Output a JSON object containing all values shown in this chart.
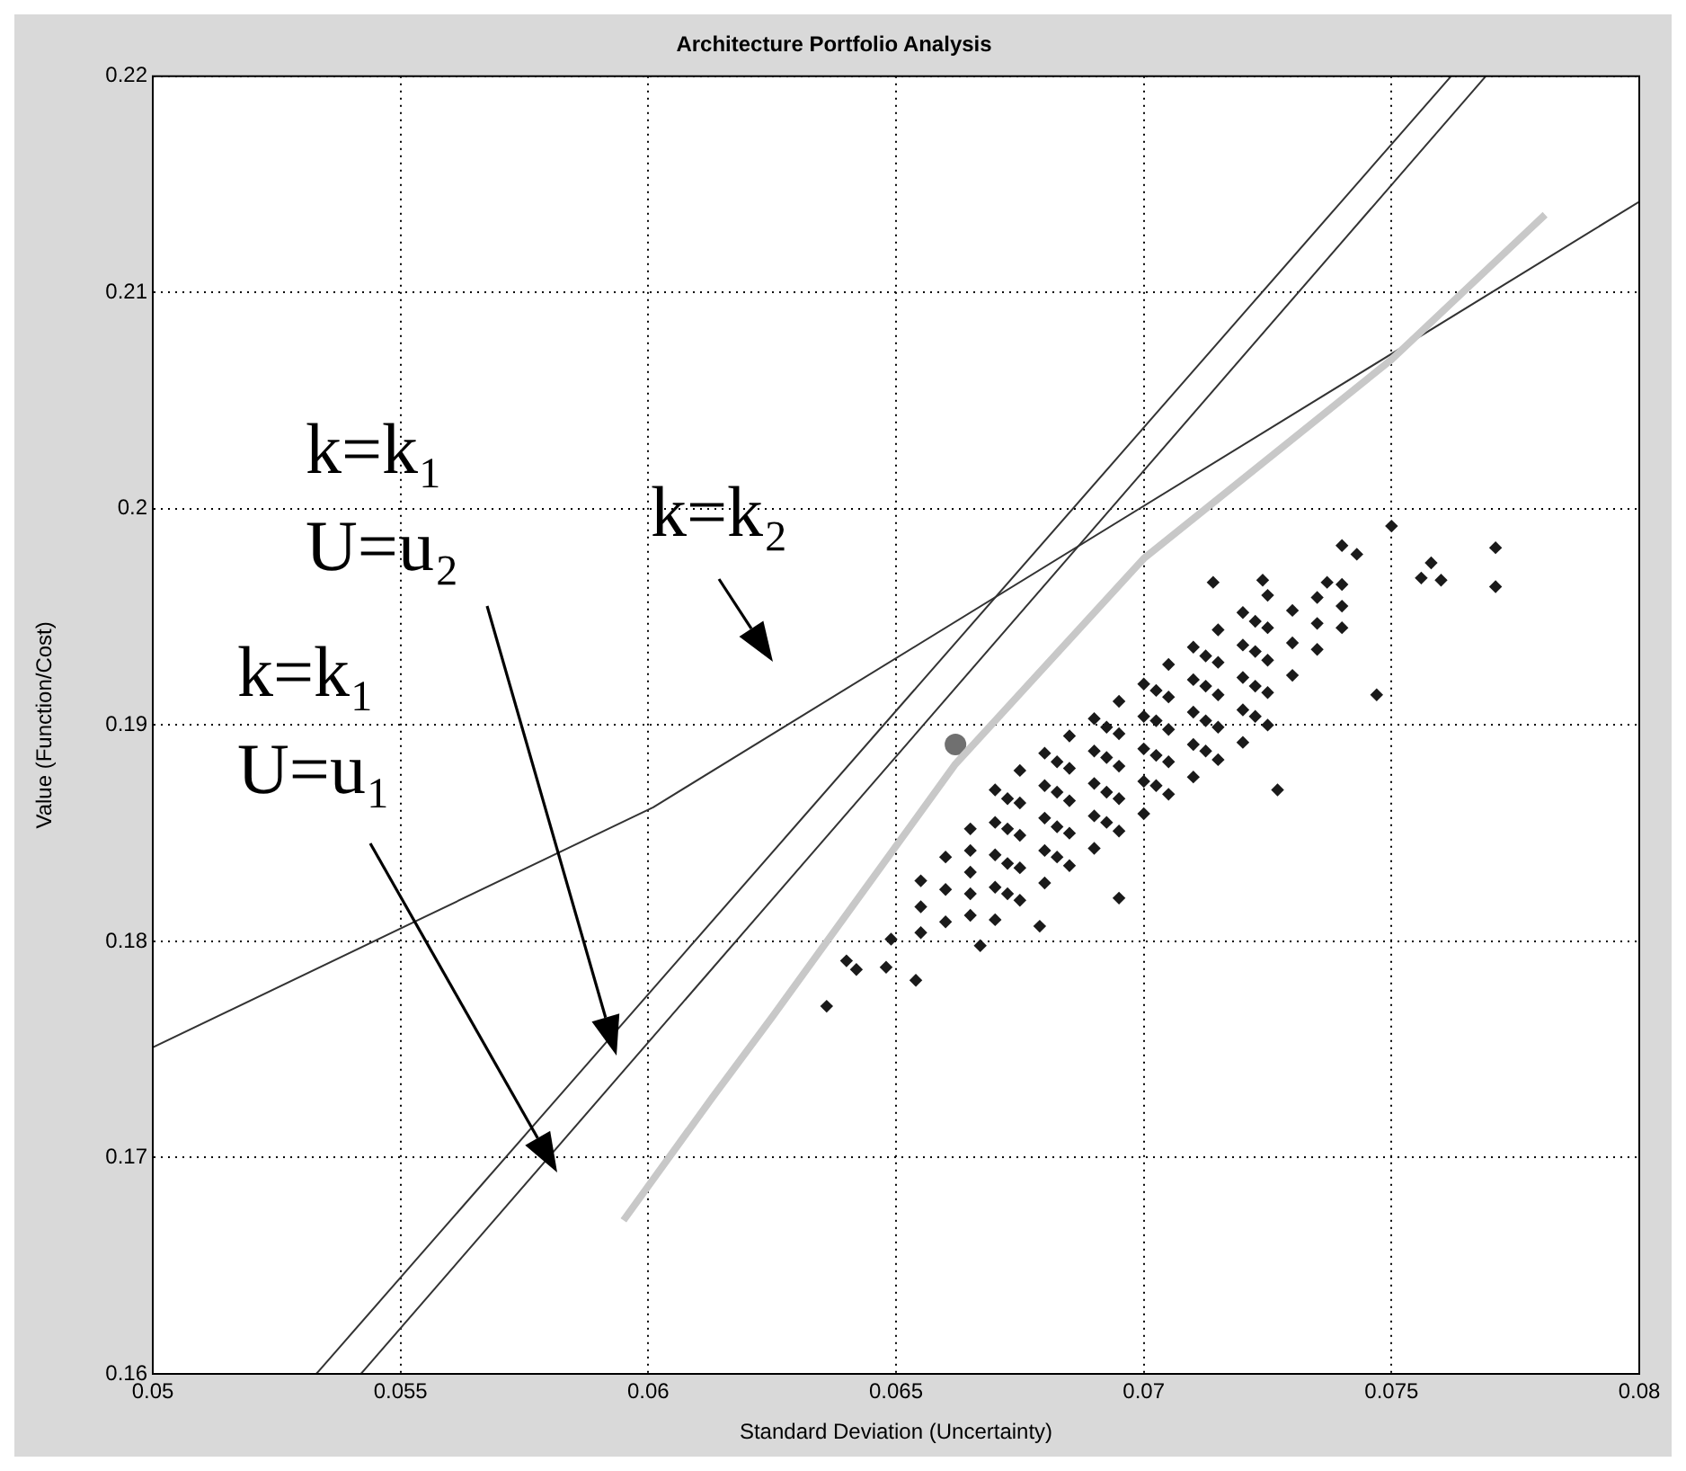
{
  "chart_data": {
    "type": "scatter",
    "title": "Architecture Portfolio Analysis",
    "xlabel": "Standard Deviation (Uncertainty)",
    "ylabel": "Value (Function/Cost)",
    "xlim": [
      0.05,
      0.08
    ],
    "xticks": [
      0.05,
      0.055,
      0.06,
      0.065,
      0.07,
      0.075,
      0.08
    ],
    "ylim": [
      0.16,
      0.22
    ],
    "yticks": [
      0.16,
      0.17,
      0.18,
      0.19,
      0.2,
      0.21,
      0.22
    ],
    "grid": true,
    "legend": false,
    "series": [
      {
        "type": "line",
        "marker": "none",
        "color": "#c8c8c8",
        "x": [
          0.0595,
          0.0613,
          0.0625,
          0.0662,
          0.07,
          0.075,
          0.0781
        ],
        "values": [
          0.1671,
          0.1728,
          0.1765,
          0.1882,
          0.1977,
          0.2069,
          0.2136
        ]
      },
      {
        "type": "line",
        "marker": "none",
        "color": "#333333",
        "x": [
          0.05,
          0.0601,
          0.08
        ],
        "values": [
          0.1751,
          0.1862,
          0.2142
        ]
      },
      {
        "type": "line",
        "marker": "none",
        "color": "#333333",
        "x": [
          0.0533,
          0.0762
        ],
        "values": [
          0.16,
          0.22
        ]
      },
      {
        "type": "line",
        "marker": "none",
        "color": "#333333",
        "x": [
          0.0542,
          0.0769
        ],
        "values": [
          0.16,
          0.22
        ]
      },
      {
        "type": "scatter",
        "marker": "diamond",
        "color": "#1a1a1a",
        "x": [
          0.0636,
          0.0642,
          0.064,
          0.0648,
          0.0654,
          0.0649,
          0.0667,
          0.0679,
          0.0695,
          0.0727,
          0.0747,
          0.075,
          0.074,
          0.0743,
          0.0771,
          0.0771,
          0.0758,
          0.076,
          0.0756,
          0.0714,
          0.0724,
          0.0737,
          0.0655,
          0.0655,
          0.0655,
          0.066,
          0.066,
          0.066,
          0.0665,
          0.0665,
          0.0665,
          0.0665,
          0.0665,
          0.067,
          0.067,
          0.067,
          0.067,
          0.067,
          0.0675,
          0.0675,
          0.0675,
          0.0675,
          0.0675,
          0.068,
          0.068,
          0.068,
          0.068,
          0.068,
          0.0685,
          0.0685,
          0.0685,
          0.0685,
          0.0685,
          0.069,
          0.069,
          0.069,
          0.069,
          0.069,
          0.0695,
          0.0695,
          0.0695,
          0.0695,
          0.0695,
          0.07,
          0.07,
          0.07,
          0.07,
          0.07,
          0.0705,
          0.0705,
          0.0705,
          0.0705,
          0.0705,
          0.071,
          0.071,
          0.071,
          0.071,
          0.071,
          0.0715,
          0.0715,
          0.0715,
          0.0715,
          0.0715,
          0.072,
          0.072,
          0.072,
          0.072,
          0.072,
          0.0725,
          0.0725,
          0.0725,
          0.0725,
          0.0725,
          0.073,
          0.073,
          0.073,
          0.0735,
          0.0735,
          0.0735,
          0.074,
          0.074,
          0.074,
          0.06725,
          0.06725,
          0.06725,
          0.06725,
          0.06825,
          0.06825,
          0.06825,
          0.06825,
          0.06925,
          0.06925,
          0.06925,
          0.06925,
          0.07025,
          0.07025,
          0.07025,
          0.07025,
          0.07125,
          0.07125,
          0.07125,
          0.07125,
          0.07225,
          0.07225,
          0.07225,
          0.07225
        ],
        "values": [
          0.177,
          0.1787,
          0.1791,
          0.1788,
          0.1782,
          0.1801,
          0.1798,
          0.1807,
          0.182,
          0.187,
          0.1914,
          0.1992,
          0.1983,
          0.1979,
          0.1982,
          0.1964,
          0.1975,
          0.1967,
          0.1968,
          0.1966,
          0.1967,
          0.1966,
          0.1804,
          0.1816,
          0.1828,
          0.1809,
          0.1824,
          0.1839,
          0.1812,
          0.1822,
          0.1832,
          0.1842,
          0.1852,
          0.181,
          0.1825,
          0.184,
          0.1855,
          0.187,
          0.1819,
          0.1834,
          0.1849,
          0.1864,
          0.1879,
          0.1827,
          0.1842,
          0.1857,
          0.1872,
          0.1887,
          0.1835,
          0.185,
          0.1865,
          0.188,
          0.1895,
          0.1843,
          0.1858,
          0.1873,
          0.1888,
          0.1903,
          0.1851,
          0.1866,
          0.1881,
          0.1896,
          0.1911,
          0.1859,
          0.1874,
          0.1889,
          0.1904,
          0.1919,
          0.1868,
          0.1883,
          0.1898,
          0.1913,
          0.1928,
          0.1876,
          0.1891,
          0.1906,
          0.1921,
          0.1936,
          0.1884,
          0.1899,
          0.1914,
          0.1929,
          0.1944,
          0.1892,
          0.1907,
          0.1922,
          0.1937,
          0.1952,
          0.19,
          0.1915,
          0.193,
          0.1945,
          0.196,
          0.1923,
          0.1938,
          0.1953,
          0.1935,
          0.1947,
          0.1959,
          0.1945,
          0.1955,
          0.1965,
          0.1822,
          0.1836,
          0.1852,
          0.1866,
          0.1839,
          0.1853,
          0.1869,
          0.1883,
          0.1855,
          0.1869,
          0.1885,
          0.1899,
          0.1872,
          0.1886,
          0.1902,
          0.1916,
          0.1888,
          0.1902,
          0.1918,
          0.1932,
          0.1904,
          0.1918,
          0.1934,
          0.1948
        ]
      },
      {
        "type": "scatter",
        "marker": "circle",
        "color": "#707070",
        "x": [
          0.0662
        ],
        "values": [
          0.1891
        ]
      }
    ],
    "annotations": [
      "k=k₁\nU=u₂",
      "k=k₂",
      "k=k₁\nU=u₁"
    ]
  }
}
